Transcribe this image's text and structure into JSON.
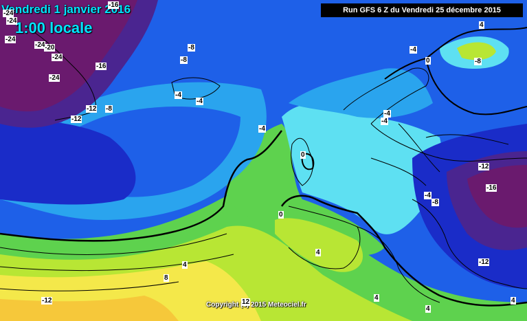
{
  "header": {
    "valid_date": "Vendredi 1 janvier 2016",
    "valid_time": "1:00 locale",
    "run_info": "Run GFS 6 Z du Vendredi 25 décembre 2015"
  },
  "footer": {
    "copyright": "Copyright (c) 2015 Meteociel.fr"
  },
  "colors": {
    "very_cold": "#6a1a6e",
    "cold_dark_blue": "#1a2cc8",
    "blue": "#1e60e8",
    "light_blue": "#2aa4ee",
    "cyan": "#5ee0f2",
    "green": "#5ed24e",
    "yellow_green": "#b8e634",
    "yellow": "#f4e84a",
    "orange_yellow": "#f6c83a",
    "title_cyan": "#00e5ff"
  },
  "contour_labels": [
    {
      "text": "-24"
    },
    {
      "text": "-24"
    },
    {
      "text": "-24"
    },
    {
      "text": "-20"
    },
    {
      "text": "-24"
    },
    {
      "text": "-24"
    },
    {
      "text": "-24"
    },
    {
      "text": "-16"
    },
    {
      "text": "-16"
    },
    {
      "text": "-12"
    },
    {
      "text": "-8"
    },
    {
      "text": "-12"
    },
    {
      "text": "-8"
    },
    {
      "text": "-8"
    },
    {
      "text": "-4"
    },
    {
      "text": "-4"
    },
    {
      "text": "-4"
    },
    {
      "text": "-4"
    },
    {
      "text": "-4"
    },
    {
      "text": "-4"
    },
    {
      "text": "0"
    },
    {
      "text": "-8"
    },
    {
      "text": "4"
    },
    {
      "text": "0"
    },
    {
      "text": "0"
    },
    {
      "text": "-4"
    },
    {
      "text": "-8"
    },
    {
      "text": "-12"
    },
    {
      "text": "-16"
    },
    {
      "text": "-12"
    },
    {
      "text": "4"
    },
    {
      "text": "8"
    },
    {
      "text": "4"
    },
    {
      "text": "4"
    },
    {
      "text": "-12"
    },
    {
      "text": "12"
    },
    {
      "text": "4"
    },
    {
      "text": "4"
    }
  ]
}
